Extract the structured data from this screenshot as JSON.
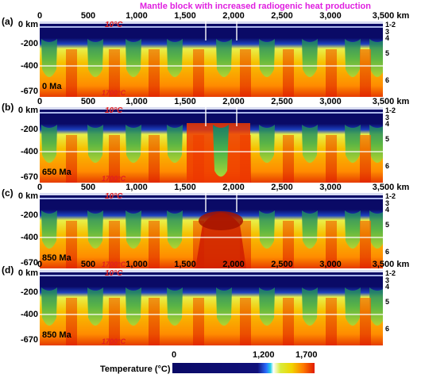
{
  "title": "Mantle block with increased radiogenic heat production",
  "axes": {
    "x_ticks": [
      "0",
      "500",
      "1,000",
      "1,500",
      "2,000",
      "2,500",
      "3,000",
      "3,500 km"
    ],
    "y_ticks": [
      "0 km",
      "-200",
      "-400",
      "-670"
    ],
    "layers": [
      "1-2",
      "3",
      "4",
      "5",
      "6"
    ]
  },
  "panels": [
    {
      "label": "(a)",
      "age": "0 Ma",
      "top_temp": "10°C",
      "bottom_temp": "1700°C",
      "state": "initial"
    },
    {
      "label": "(b)",
      "age": "650 Ma",
      "top_temp": "10°C",
      "bottom_temp": "1700°C",
      "state": "hot_block"
    },
    {
      "label": "(c)",
      "age": "850 Ma",
      "top_temp": "10°C",
      "bottom_temp": "1700°C",
      "state": "plume"
    },
    {
      "label": "(d)",
      "age": "850 Ma",
      "top_temp": "10°C",
      "bottom_temp": "1700°C",
      "state": "reference"
    }
  ],
  "colorbar": {
    "title": "Temperature (°C)",
    "labels": [
      "0",
      "1,200",
      "1,700"
    ],
    "min": 0,
    "max": 1700
  },
  "colors": {
    "cold": "#0a0a66",
    "hot": "#e01a00",
    "annotation": "#e020e0",
    "temp_label": "#e02020"
  }
}
